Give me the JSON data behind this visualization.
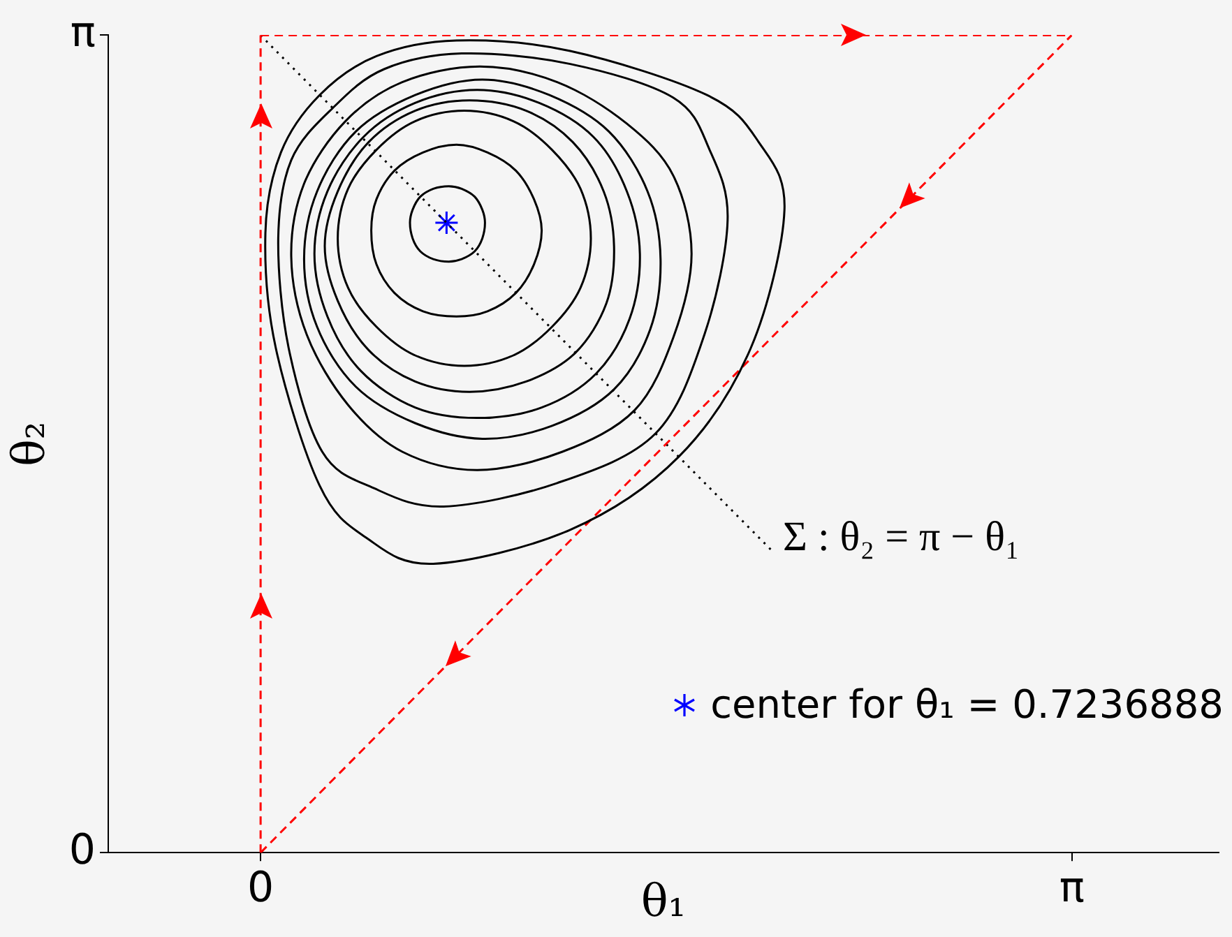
{
  "chart_data": {
    "type": "line",
    "xlabel": "θ₁",
    "ylabel": "θ₂",
    "xlim": [
      -0.59,
      3.71
    ],
    "ylim": [
      0,
      3.1416
    ],
    "xticks": [
      0,
      {
        "value": 3.1416,
        "label": "π"
      }
    ],
    "yticks": [
      0,
      {
        "value": 3.1416,
        "label": "π"
      }
    ],
    "grid": false,
    "legend": "bottom right",
    "annotations": [
      {
        "text": "Σ : θ₂ = π − θ₁",
        "x": 1.99,
        "y": 1.15
      }
    ],
    "series": [
      {
        "color": "#ff0000",
        "marker": "none",
        "line_style": "dashed",
        "x": [
          0,
          0
        ],
        "values": [
          0,
          3.14
        ]
      },
      {
        "color": "#ff0000",
        "marker": "none",
        "line_style": "dashed",
        "x": [
          0,
          3.14
        ],
        "values": [
          3.14,
          3.14
        ]
      },
      {
        "color": "#ff0000",
        "marker": "none",
        "line_style": "dashed",
        "x": [
          0,
          3.14
        ],
        "values": [
          0,
          3.14
        ]
      },
      {
        "color": "#000000",
        "marker": "none",
        "line_style": "dotted",
        "x": [
          0,
          1.99
        ],
        "values": [
          3.14,
          1.15
        ]
      },
      {
        "type": "scatter",
        "name": "center for θ₁ = 0.7236888",
        "color": "#0000ff",
        "marker": "cross",
        "x": [
          0.72
        ],
        "values": [
          2.42
        ]
      }
    ]
  }
}
